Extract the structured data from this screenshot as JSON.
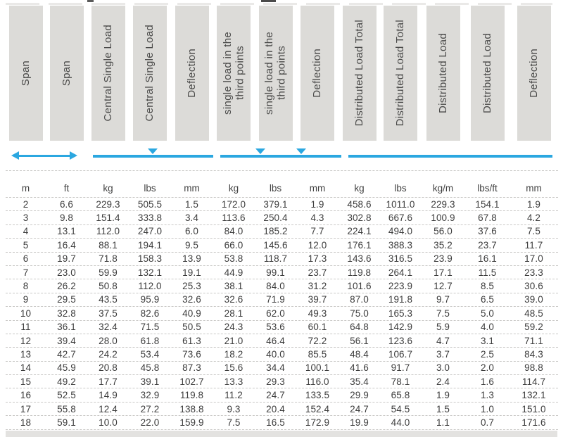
{
  "colors": {
    "accent_blue": "#2BA7E0",
    "header_bg": "#DCDBD8"
  },
  "table": {
    "headers": [
      "Span",
      "Span",
      "Central Single Load",
      "Central Single Load",
      "Deflection",
      "single load in the\nthird points",
      "single load in the\nthird points",
      "Deflection",
      "Distributed Load Total",
      "Distributed Load Total",
      "Distributed Load",
      "Distributed Load",
      "Deflection"
    ],
    "units": [
      "m",
      "ft",
      "kg",
      "lbs",
      "mm",
      "kg",
      "lbs",
      "mm",
      "kg",
      "lbs",
      "kg/m",
      "lbs/ft",
      "mm"
    ],
    "rows": [
      [
        "2",
        "6.6",
        "229.3",
        "505.5",
        "1.5",
        "172.0",
        "379.1",
        "1.9",
        "458.6",
        "1011.0",
        "229.3",
        "154.1",
        "1.9"
      ],
      [
        "3",
        "9.8",
        "151.4",
        "333.8",
        "3.4",
        "113.6",
        "250.4",
        "4.3",
        "302.8",
        "667.6",
        "100.9",
        "67.8",
        "4.2"
      ],
      [
        "4",
        "13.1",
        "112.0",
        "247.0",
        "6.0",
        "84.0",
        "185.2",
        "7.7",
        "224.1",
        "494.0",
        "56.0",
        "37.6",
        "7.5"
      ],
      [
        "5",
        "16.4",
        "88.1",
        "194.1",
        "9.5",
        "66.0",
        "145.6",
        "12.0",
        "176.1",
        "388.3",
        "35.2",
        "23.7",
        "11.7"
      ],
      [
        "6",
        "19.7",
        "71.8",
        "158.3",
        "13.9",
        "53.8",
        "118.7",
        "17.3",
        "143.6",
        "316.5",
        "23.9",
        "16.1",
        "17.0"
      ],
      [
        "7",
        "23.0",
        "59.9",
        "132.1",
        "19.1",
        "44.9",
        "99.1",
        "23.7",
        "119.8",
        "264.1",
        "17.1",
        "11.5",
        "23.3"
      ],
      [
        "8",
        "26.2",
        "50.8",
        "112.0",
        "25.3",
        "38.1",
        "84.0",
        "31.2",
        "101.6",
        "223.9",
        "12.7",
        "8.5",
        "30.6"
      ],
      [
        "9",
        "29.5",
        "43.5",
        "95.9",
        "32.6",
        "32.6",
        "71.9",
        "39.7",
        "87.0",
        "191.8",
        "9.7",
        "6.5",
        "39.0"
      ],
      [
        "10",
        "32.8",
        "37.5",
        "82.6",
        "40.9",
        "28.1",
        "62.0",
        "49.3",
        "75.0",
        "165.3",
        "7.5",
        "5.0",
        "48.5"
      ],
      [
        "11",
        "36.1",
        "32.4",
        "71.5",
        "50.5",
        "24.3",
        "53.6",
        "60.1",
        "64.8",
        "142.9",
        "5.9",
        "4.0",
        "59.2"
      ],
      [
        "12",
        "39.4",
        "28.0",
        "61.8",
        "61.3",
        "21.0",
        "46.4",
        "72.2",
        "56.1",
        "123.6",
        "4.7",
        "3.1",
        "71.1"
      ],
      [
        "13",
        "42.7",
        "24.2",
        "53.4",
        "73.6",
        "18.2",
        "40.0",
        "85.5",
        "48.4",
        "106.7",
        "3.7",
        "2.5",
        "84.3"
      ],
      [
        "14",
        "45.9",
        "20.8",
        "45.8",
        "87.3",
        "15.6",
        "34.4",
        "100.1",
        "41.6",
        "91.7",
        "3.0",
        "2.0",
        "98.8"
      ],
      [
        "15",
        "49.2",
        "17.7",
        "39.1",
        "102.7",
        "13.3",
        "29.3",
        "116.0",
        "35.4",
        "78.1",
        "2.4",
        "1.6",
        "114.7"
      ],
      [
        "16",
        "52.5",
        "14.9",
        "32.9",
        "119.8",
        "11.2",
        "24.7",
        "133.5",
        "29.9",
        "65.8",
        "1.9",
        "1.3",
        "132.1"
      ],
      [
        "17",
        "55.8",
        "12.4",
        "27.2",
        "138.8",
        "9.3",
        "20.4",
        "152.4",
        "24.7",
        "54.5",
        "1.5",
        "1.0",
        "151.0"
      ],
      [
        "18",
        "59.1",
        "10.0",
        "22.0",
        "159.9",
        "7.5",
        "16.5",
        "172.9",
        "19.9",
        "44.0",
        "1.1",
        "0.7",
        "171.6"
      ]
    ]
  },
  "diagram": {
    "span_marker": "double-headed-arrow",
    "central_single_load_marker": "line-with-center-point-load-triangle",
    "third_point_load_marker": "line-with-two-third-point-load-triangles",
    "distributed_load_marker": "plain-line"
  }
}
